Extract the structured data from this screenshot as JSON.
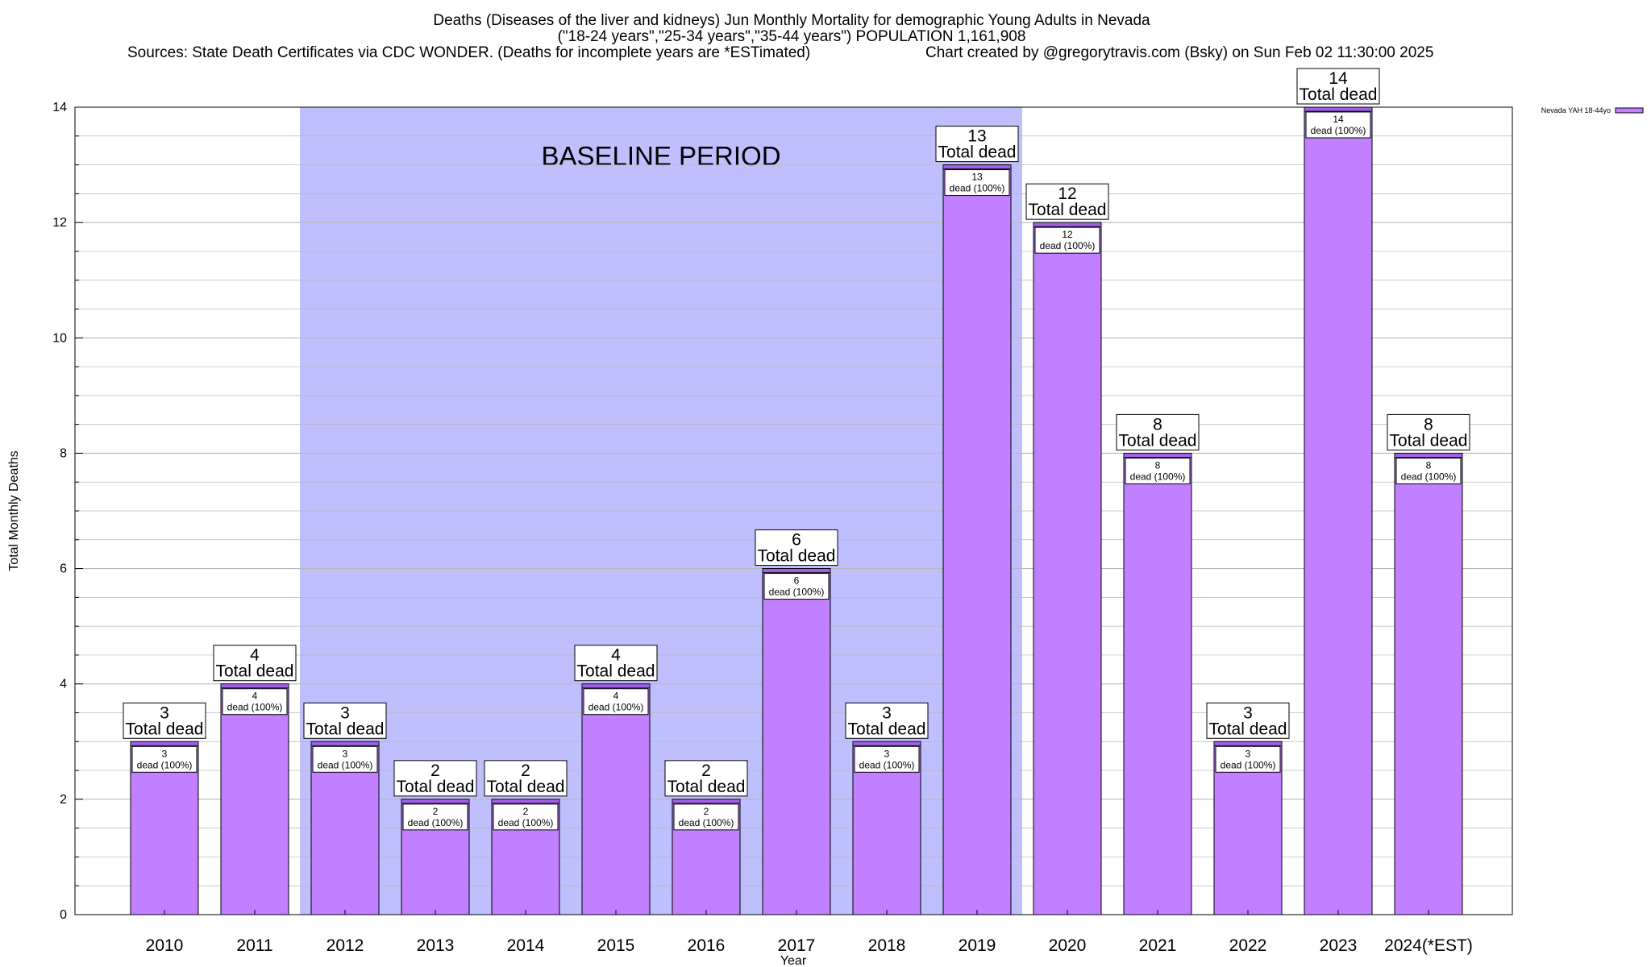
{
  "title": {
    "line1": "Deaths (Diseases of the liver and kidneys) Jun Monthly Mortality for demographic Young Adults in Nevada",
    "line2": "(\"18-24 years\",\"25-34 years\",\"35-44 years\") POPULATION 1,161,908",
    "sources": "Sources: State Death Certificates via CDC WONDER. (Deaths for incomplete years are *ESTimated)",
    "credit": "Chart created by @gregorytravis.com (Bsky) on Sun Feb 02 11:30:00 2025"
  },
  "chart_data": {
    "type": "bar",
    "title": "Deaths (Diseases of the liver and kidneys) Jun Monthly Mortality for demographic Young Adults in Nevada",
    "xlabel": "Year",
    "ylabel": "Total Monthly Deaths",
    "ylim": [
      0,
      14
    ],
    "yticks": [
      0,
      2,
      4,
      6,
      8,
      10,
      12,
      14
    ],
    "grid": true,
    "legend_position": "top-right",
    "categories": [
      "2010",
      "2011",
      "2012",
      "2013",
      "2014",
      "2015",
      "2016",
      "2017",
      "2018",
      "2019",
      "2020",
      "2021",
      "2022",
      "2023",
      "2024(*EST)"
    ],
    "series": [
      {
        "name": "Nevada YAH 18-44yo",
        "values": [
          3,
          4,
          3,
          2,
          2,
          4,
          2,
          6,
          3,
          13,
          12,
          8,
          3,
          14,
          8
        ]
      }
    ],
    "total_label_suffix": "Total dead",
    "inner_label_suffix": "dead (100%)",
    "baseline_period": {
      "label": "BASELINE PERIOD",
      "start": "2012",
      "end": "2019"
    }
  },
  "colors": {
    "bar_fill": "#c080ff",
    "bar_top": "#a060e8",
    "baseline_fill": "#bfbffd",
    "grid": "#b8b8b8",
    "axis": "#000000"
  }
}
